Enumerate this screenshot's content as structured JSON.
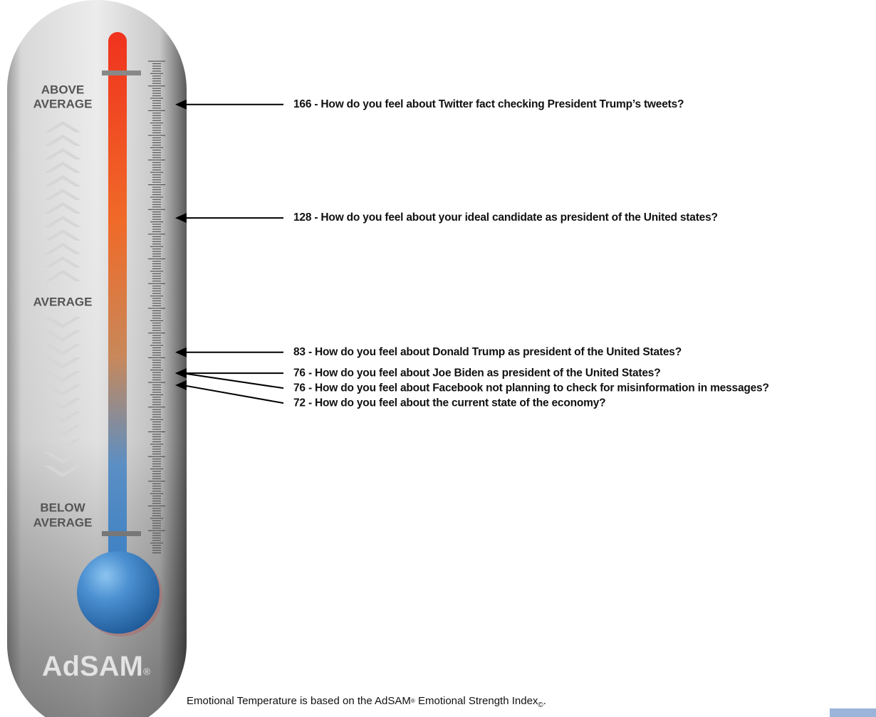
{
  "chart_data": {
    "type": "thermometer",
    "zones": [
      [
        "ABOVE",
        "AVERAGE"
      ],
      [
        "AVERAGE"
      ],
      [
        "BELOW",
        "AVERAGE"
      ]
    ],
    "values": [
      166,
      128,
      83,
      76,
      76,
      72
    ],
    "value_labels": [
      "166 - How do you feel about Twitter fact checking President  Trump’s tweets?",
      "128 - How do you feel about your ideal candidate as president of the United states?",
      "83 - How do you feel about Donald Trump as president of the United States?",
      "76 - How do you feel about Joe Biden as president of the United States?",
      "76 - How do you feel about Facebook not planning to check for misinformation in messages?",
      "72 - How do you feel about the current state of the economy?"
    ],
    "ylim": [
      15,
      180
    ],
    "logo": [
      "AdSAM",
      "®"
    ],
    "footnote": [
      "Emotional Temperature is based on the AdSAM",
      "®",
      " Emotional Strength Index",
      "©",
      "."
    ]
  }
}
